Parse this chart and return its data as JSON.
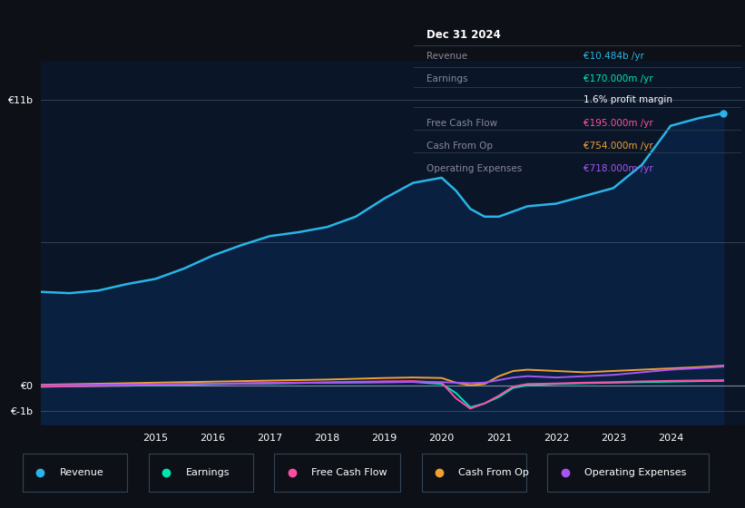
{
  "bg_color": "#0d1117",
  "plot_bg_color": "#0a1628",
  "years": [
    2013.0,
    2013.5,
    2014.0,
    2014.5,
    2015.0,
    2015.5,
    2016.0,
    2016.5,
    2017.0,
    2017.5,
    2018.0,
    2018.5,
    2019.0,
    2019.5,
    2020.0,
    2020.25,
    2020.5,
    2020.75,
    2021.0,
    2021.25,
    2021.5,
    2022.0,
    2022.5,
    2023.0,
    2023.5,
    2024.0,
    2024.5,
    2024.92
  ],
  "revenue": [
    3.6,
    3.55,
    3.65,
    3.9,
    4.1,
    4.5,
    5.0,
    5.4,
    5.75,
    5.9,
    6.1,
    6.5,
    7.2,
    7.8,
    8.0,
    7.5,
    6.8,
    6.5,
    6.5,
    6.7,
    6.9,
    7.0,
    7.3,
    7.6,
    8.5,
    10.0,
    10.3,
    10.484
  ],
  "earnings": [
    -0.06,
    -0.04,
    -0.03,
    -0.02,
    0.0,
    0.02,
    0.04,
    0.06,
    0.07,
    0.09,
    0.1,
    0.11,
    0.12,
    0.13,
    0.05,
    -0.3,
    -0.85,
    -0.7,
    -0.45,
    -0.1,
    0.0,
    0.05,
    0.08,
    0.1,
    0.12,
    0.14,
    0.16,
    0.17
  ],
  "free_cash_flow": [
    -0.05,
    -0.04,
    -0.02,
    0.0,
    0.02,
    0.04,
    0.06,
    0.07,
    0.09,
    0.1,
    0.11,
    0.13,
    0.15,
    0.16,
    0.1,
    -0.5,
    -0.9,
    -0.7,
    -0.4,
    -0.05,
    0.05,
    0.07,
    0.1,
    0.12,
    0.15,
    0.17,
    0.185,
    0.195
  ],
  "cash_from_op": [
    0.02,
    0.04,
    0.06,
    0.08,
    0.1,
    0.12,
    0.14,
    0.16,
    0.18,
    0.2,
    0.22,
    0.25,
    0.28,
    0.3,
    0.28,
    0.1,
    0.0,
    0.05,
    0.35,
    0.55,
    0.6,
    0.55,
    0.5,
    0.55,
    0.6,
    0.65,
    0.7,
    0.754
  ],
  "operating_expenses": [
    0.0,
    0.01,
    0.02,
    0.03,
    0.04,
    0.05,
    0.06,
    0.07,
    0.08,
    0.09,
    0.1,
    0.11,
    0.12,
    0.13,
    0.12,
    0.1,
    0.08,
    0.1,
    0.2,
    0.3,
    0.35,
    0.3,
    0.35,
    0.4,
    0.5,
    0.6,
    0.66,
    0.718
  ],
  "revenue_color": "#29b5e8",
  "revenue_fill_color": "#0a2040",
  "earnings_color": "#00e5b4",
  "free_cash_flow_color": "#ff4da6",
  "cash_from_op_color": "#f0a030",
  "operating_expenses_color": "#a855f7",
  "ylim_min": -1.5,
  "ylim_max": 12.5,
  "xlim_min": 2013.0,
  "xlim_max": 2025.3,
  "ytick_vals": [
    -1.0,
    0.0,
    11.0
  ],
  "ytick_labels": [
    "€-1b",
    "€0",
    "€11b"
  ],
  "xtick_vals": [
    2015,
    2016,
    2017,
    2018,
    2019,
    2020,
    2021,
    2022,
    2023,
    2024
  ],
  "hline_positions": [
    -1.0,
    0.0,
    5.5,
    11.0
  ],
  "info_box": {
    "title": "Dec 31 2024",
    "rows": [
      {
        "label": "Revenue",
        "value": "€10.484b /yr",
        "label_color": "#888899",
        "value_color": "#29b5e8"
      },
      {
        "label": "Earnings",
        "value": "€170.000m /yr",
        "label_color": "#888899",
        "value_color": "#00e5b4"
      },
      {
        "label": "",
        "value": "1.6% profit margin",
        "label_color": "#888899",
        "value_color": "#ffffff"
      },
      {
        "label": "Free Cash Flow",
        "value": "€195.000m /yr",
        "label_color": "#888899",
        "value_color": "#ff4da6"
      },
      {
        "label": "Cash From Op",
        "value": "€754.000m /yr",
        "label_color": "#888899",
        "value_color": "#f0a030"
      },
      {
        "label": "Operating Expenses",
        "value": "€718.000m /yr",
        "label_color": "#888899",
        "value_color": "#a855f7"
      }
    ]
  },
  "legend_entries": [
    {
      "label": "Revenue",
      "color": "#29b5e8"
    },
    {
      "label": "Earnings",
      "color": "#00e5b4"
    },
    {
      "label": "Free Cash Flow",
      "color": "#ff4da6"
    },
    {
      "label": "Cash From Op",
      "color": "#f0a030"
    },
    {
      "label": "Operating Expenses",
      "color": "#a855f7"
    }
  ]
}
